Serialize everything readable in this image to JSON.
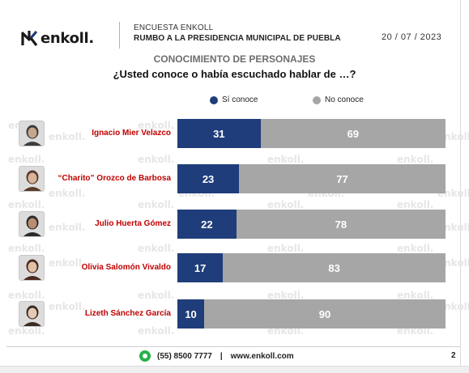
{
  "header": {
    "brand": "enkoll.",
    "survey_label": "ENCUESTA ENKOLL",
    "survey_title": "RUMBO A LA PRESIDENCIA MUNICIPAL DE PUEBLA",
    "date": "20 / 07 / 2023"
  },
  "section_title": "CONOCIMIENTO DE PERSONAJES",
  "question": "¿Usted conoce o había escuchado hablar de …?",
  "watermark": "enkoll.",
  "colors": {
    "si_conoce": "#1f3d7a",
    "no_conoce": "#a6a6a6",
    "name_red": "#c00000"
  },
  "chart_data": {
    "type": "bar",
    "orientation": "horizontal",
    "stacked": true,
    "categories": [
      "Ignacio Mier Velazco",
      "“Charito” Orozco de Barbosa",
      "Julio Huerta Gómez",
      "Olivia Salomón Vivaldo",
      "Lizeth Sánchez García"
    ],
    "series": [
      {
        "name": "Sí conoce",
        "values": [
          31,
          23,
          22,
          17,
          10
        ]
      },
      {
        "name": "No conoce",
        "values": [
          69,
          77,
          78,
          83,
          90
        ]
      }
    ],
    "xlim": [
      0,
      100
    ],
    "grid": false,
    "legend_position": "top"
  },
  "footer": {
    "phone": "(55) 8500 7777",
    "separator": "|",
    "website": "www.enkoll.com",
    "page_number": "2"
  }
}
